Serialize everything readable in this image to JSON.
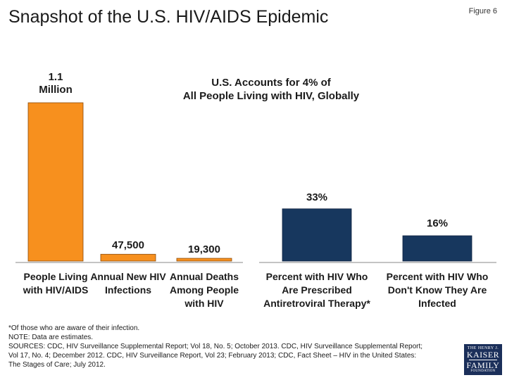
{
  "header": {
    "title": "Snapshot of the U.S. HIV/AIDS Epidemic",
    "figure_label": "Figure 6"
  },
  "chart_data": [
    {
      "type": "bar",
      "categories": [
        [
          "People Living",
          "with HIV/AIDS"
        ],
        [
          "Annual New HIV",
          "Infections"
        ],
        [
          "Annual Deaths",
          "Among People",
          "with HIV"
        ]
      ],
      "values": [
        1100000,
        47500,
        19300
      ],
      "data_labels": [
        [
          "1.1",
          "Million"
        ],
        [
          "47,500"
        ],
        [
          "19,300"
        ]
      ],
      "annotation": [
        "U.S. Accounts for 4% of",
        "All People Living with HIV, Globally"
      ],
      "color": "#F7901E",
      "ylim": [
        0,
        1100000
      ]
    },
    {
      "type": "bar",
      "categories": [
        [
          "Percent with HIV Who",
          "Are Prescribed",
          "Antiretroviral Therapy*"
        ],
        [
          "Percent with HIV Who",
          "Don't Know They Are",
          "Infected"
        ]
      ],
      "values": [
        33,
        16
      ],
      "data_labels": [
        [
          "33%"
        ],
        [
          "16%"
        ]
      ],
      "color": "#17375E",
      "ylim": [
        0,
        100
      ]
    }
  ],
  "footnotes": [
    "*Of those who are aware of their infection.",
    "NOTE: Data are estimates.",
    "SOURCES: CDC, HIV Surveillance Supplemental Report; Vol 18, No. 5; October 2013. CDC, HIV Surveillance Supplemental Report;",
    "Vol 17, No. 4; December 2012. CDC, HIV Surveillance Report, Vol 23; February 2013; CDC, Fact Sheet – HIV in the United States:",
    "The Stages of Care; July 2012."
  ],
  "logo": {
    "line1": "THE HENRY J.",
    "line2": "KAISER",
    "line3": "FAMILY",
    "line4": "FOUNDATION"
  }
}
